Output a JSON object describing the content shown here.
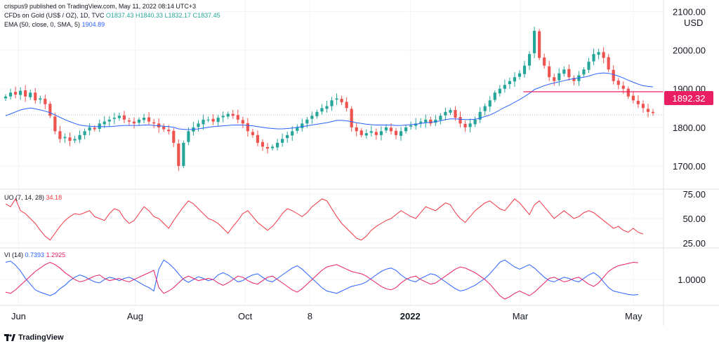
{
  "header": {
    "published": "crispus9 published on TradingView.com, May 11, 2022 08:14 UTC+3",
    "symbol": "CFDs on Gold (US$ / OZ), 1D, TVC",
    "ohlc": {
      "o": "O1837.43",
      "h": "H1840.33",
      "l": "L1832.17",
      "c": "C1837.45"
    },
    "ema_label": "EMA (50, close, 0, SMA, 5)",
    "ema_value": "1904.89"
  },
  "currency": "USD",
  "price_badge": "1892.32",
  "uo_label": "UO (7, 14, 28)",
  "uo_value": "34.18",
  "vi_label": "VI (14)",
  "vi_plus": "0.7393",
  "vi_minus": "1.2925",
  "footer": "TradingView",
  "colors": {
    "up": "#26a69a",
    "down": "#ef5350",
    "ema": "#2962ff",
    "uo": "#f23645",
    "vi_plus": "#2962ff",
    "vi_minus": "#e91e63",
    "hline": "#e91e63"
  },
  "chart_data": [
    {
      "type": "candlestick",
      "title": "CFDs on Gold (US$ / OZ), 1D, TVC",
      "ylim": [
        1640,
        2130
      ],
      "y_ticks": [
        "2100.00",
        "2000.00",
        "1900.00",
        "1800.00",
        "1700.00"
      ],
      "x_ticks": [
        {
          "label": "Jun",
          "x": 0.02
        },
        {
          "label": "Aug",
          "x": 0.2
        },
        {
          "label": "Oct",
          "x": 0.37
        },
        {
          "label": "8",
          "x": 0.47
        },
        {
          "label": "2022",
          "x": 0.625,
          "bold": true
        },
        {
          "label": "Mar",
          "x": 0.795
        },
        {
          "label": "May",
          "x": 0.97
        }
      ],
      "close_path": [
        1880,
        1890,
        1885,
        1895,
        1880,
        1890,
        1870,
        1875,
        1860,
        1830,
        1790,
        1770,
        1775,
        1765,
        1770,
        1780,
        1790,
        1800,
        1795,
        1810,
        1815,
        1820,
        1825,
        1830,
        1820,
        1815,
        1810,
        1820,
        1825,
        1815,
        1810,
        1800,
        1795,
        1790,
        1760,
        1700,
        1760,
        1790,
        1800,
        1810,
        1820,
        1820,
        1815,
        1825,
        1830,
        1835,
        1830,
        1820,
        1810,
        1790,
        1780,
        1760,
        1750,
        1745,
        1750,
        1760,
        1770,
        1780,
        1790,
        1800,
        1810,
        1820,
        1830,
        1840,
        1850,
        1855,
        1870,
        1875,
        1865,
        1850,
        1800,
        1790,
        1780,
        1785,
        1790,
        1780,
        1790,
        1800,
        1790,
        1780,
        1790,
        1800,
        1805,
        1810,
        1815,
        1820,
        1810,
        1820,
        1830,
        1840,
        1845,
        1825,
        1810,
        1800,
        1810,
        1820,
        1840,
        1855,
        1870,
        1890,
        1900,
        1910,
        1920,
        1930,
        1940,
        1960,
        1990,
        2050,
        1980,
        1960,
        1930,
        1920,
        1940,
        1950,
        1930,
        1920,
        1935,
        1950,
        1970,
        1990,
        1995,
        1980,
        1950,
        1920,
        1910,
        1900,
        1880,
        1870,
        1860,
        1850,
        1840,
        1837
      ],
      "hline": 1892.32,
      "ema50": [
        1830,
        1835,
        1840,
        1845,
        1848,
        1850,
        1848,
        1845,
        1842,
        1838,
        1832,
        1826,
        1820,
        1815,
        1810,
        1806,
        1804,
        1803,
        1802,
        1802,
        1802,
        1802,
        1803,
        1804,
        1805,
        1805,
        1805,
        1805,
        1806,
        1806,
        1805,
        1804,
        1803,
        1802,
        1800,
        1796,
        1795,
        1794,
        1795,
        1796,
        1798,
        1800,
        1802,
        1803,
        1804,
        1805,
        1806,
        1806,
        1806,
        1805,
        1804,
        1802,
        1800,
        1798,
        1797,
        1796,
        1796,
        1797,
        1798,
        1800,
        1802,
        1804,
        1806,
        1808,
        1810,
        1812,
        1815,
        1818,
        1818,
        1817,
        1815,
        1812,
        1810,
        1808,
        1807,
        1806,
        1806,
        1806,
        1806,
        1805,
        1805,
        1806,
        1807,
        1808,
        1810,
        1812,
        1813,
        1815,
        1817,
        1820,
        1822,
        1822,
        1821,
        1820,
        1820,
        1821,
        1824,
        1828,
        1832,
        1838,
        1845,
        1852,
        1858,
        1865,
        1872,
        1880,
        1888,
        1898,
        1903,
        1908,
        1912,
        1915,
        1918,
        1921,
        1924,
        1926,
        1928,
        1930,
        1933,
        1937,
        1940,
        1941,
        1940,
        1937,
        1933,
        1928,
        1922,
        1917,
        1912,
        1908,
        1906,
        1904.89
      ]
    },
    {
      "type": "line",
      "title": "UO (7, 14, 28)",
      "ylim": [
        20,
        80
      ],
      "y_ticks": [
        "75.00",
        "50.00",
        "25.00"
      ],
      "series": [
        {
          "name": "UO",
          "values": [
            65,
            62,
            70,
            58,
            55,
            50,
            45,
            38,
            32,
            28,
            35,
            42,
            48,
            52,
            55,
            54,
            56,
            58,
            52,
            50,
            48,
            55,
            60,
            58,
            50,
            45,
            48,
            55,
            62,
            58,
            52,
            50,
            45,
            40,
            48,
            55,
            62,
            68,
            65,
            60,
            55,
            50,
            48,
            45,
            40,
            35,
            42,
            48,
            55,
            58,
            52,
            46,
            42,
            38,
            42,
            48,
            55,
            60,
            58,
            55,
            52,
            56,
            62,
            66,
            70,
            68,
            60,
            52,
            45,
            40,
            35,
            30,
            28,
            32,
            38,
            42,
            45,
            48,
            50,
            54,
            58,
            55,
            52,
            50,
            56,
            62,
            60,
            58,
            62,
            66,
            64,
            56,
            50,
            46,
            52,
            58,
            62,
            66,
            68,
            64,
            60,
            58,
            64,
            70,
            66,
            60,
            54,
            64,
            68,
            62,
            56,
            50,
            54,
            58,
            54,
            50,
            52,
            56,
            58,
            56,
            52,
            48,
            44,
            40,
            42,
            38,
            36,
            40,
            36,
            34.18
          ]
        }
      ]
    },
    {
      "type": "line",
      "title": "VI (14)",
      "ylim": [
        0.55,
        1.55
      ],
      "y_ticks": [
        "1.0000"
      ],
      "series": [
        {
          "name": "VI+",
          "values": [
            1.3,
            1.32,
            1.25,
            1.15,
            1.02,
            0.92,
            0.82,
            0.78,
            0.75,
            0.72,
            0.76,
            0.84,
            0.9,
            0.98,
            1.04,
            1.08,
            1.05,
            1.0,
            0.96,
            0.94,
            1.0,
            1.04,
            1.02,
            0.98,
            1.02,
            1.04,
            1.0,
            0.95,
            0.9,
            0.86,
            0.8,
            1.18,
            1.34,
            1.28,
            1.2,
            1.1,
            1.0,
            0.95,
            1.0,
            1.05,
            1.02,
            0.98,
            1.0,
            1.08,
            1.12,
            1.08,
            1.02,
            0.96,
            0.98,
            1.04,
            1.08,
            1.1,
            1.04,
            0.98,
            0.96,
            1.02,
            1.08,
            1.14,
            1.2,
            1.24,
            1.18,
            1.1,
            1.02,
            0.94,
            0.86,
            0.8,
            0.78,
            0.76,
            0.8,
            0.84,
            0.88,
            0.9,
            0.92,
            0.96,
            1.02,
            1.08,
            1.14,
            1.18,
            1.2,
            1.16,
            1.08,
            1.02,
            0.98,
            0.96,
            1.02,
            1.06,
            1.1,
            1.08,
            1.02,
            0.96,
            0.9,
            0.84,
            0.8,
            0.82,
            0.86,
            0.9,
            0.96,
            1.02,
            1.1,
            1.2,
            1.3,
            1.34,
            1.28,
            1.22,
            1.18,
            1.22,
            1.26,
            1.2,
            1.12,
            1.04,
            0.98,
            0.96,
            1.0,
            1.04,
            1.02,
            0.98,
            0.96,
            1.02,
            1.08,
            1.12,
            1.06,
            0.96,
            0.86,
            0.8,
            0.78,
            0.76,
            0.74,
            0.73,
            0.7393
          ]
        },
        {
          "name": "VI-",
          "values": [
            0.78,
            0.76,
            0.82,
            0.9,
            0.98,
            1.06,
            1.14,
            1.2,
            1.26,
            1.3,
            1.26,
            1.2,
            1.12,
            1.06,
            1.0,
            0.96,
            0.98,
            1.02,
            1.06,
            1.08,
            1.02,
            0.98,
            1.0,
            1.02,
            0.98,
            0.96,
            1.0,
            1.04,
            1.08,
            1.12,
            1.16,
            0.86,
            0.76,
            0.8,
            0.86,
            0.94,
            1.02,
            1.06,
            1.02,
            0.98,
            1.0,
            1.02,
            1.0,
            0.94,
            0.9,
            0.94,
            1.0,
            1.06,
            1.04,
            0.98,
            0.94,
            0.92,
            0.98,
            1.04,
            1.06,
            1.0,
            0.94,
            0.88,
            0.82,
            0.78,
            0.84,
            0.92,
            1.0,
            1.08,
            1.16,
            1.22,
            1.24,
            1.26,
            1.22,
            1.18,
            1.14,
            1.12,
            1.1,
            1.06,
            1.0,
            0.94,
            0.88,
            0.84,
            0.82,
            0.86,
            0.94,
            1.0,
            1.04,
            1.06,
            1.0,
            0.96,
            0.92,
            0.94,
            1.0,
            1.06,
            1.12,
            1.18,
            1.22,
            1.2,
            1.16,
            1.12,
            1.06,
            1.0,
            0.92,
            0.82,
            0.72,
            0.66,
            0.7,
            0.76,
            0.8,
            0.76,
            0.72,
            0.78,
            0.86,
            0.94,
            1.02,
            1.04,
            1.0,
            0.96,
            0.98,
            1.02,
            1.04,
            0.98,
            0.92,
            0.88,
            0.94,
            1.04,
            1.14,
            1.2,
            1.24,
            1.26,
            1.28,
            1.3,
            1.2925
          ]
        }
      ]
    }
  ]
}
